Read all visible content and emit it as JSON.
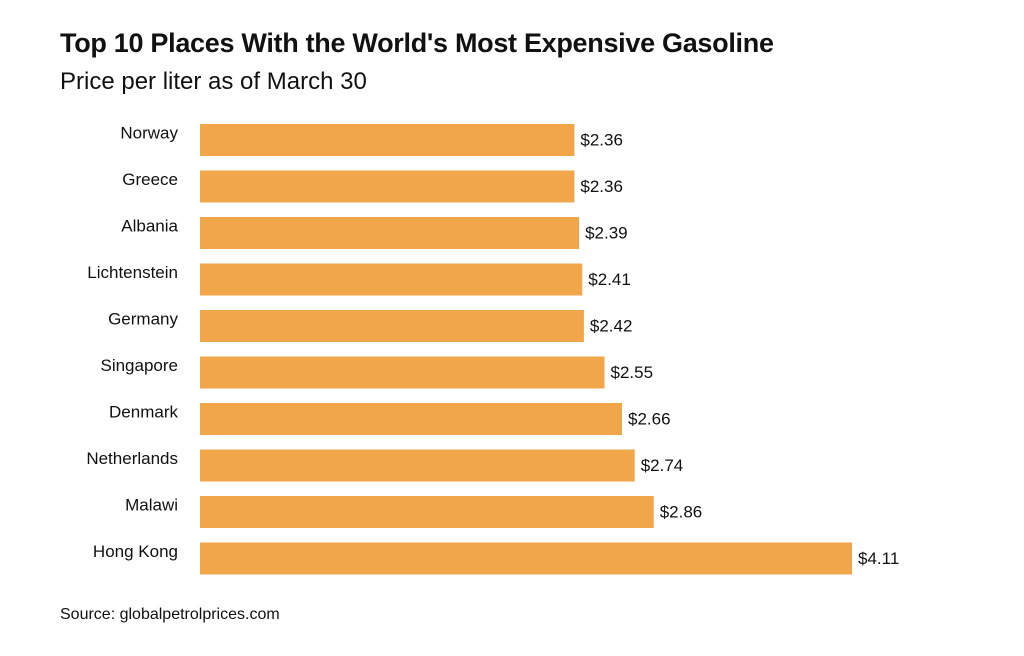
{
  "chart_data": {
    "type": "bar",
    "orientation": "horizontal",
    "title": "Top 10 Places With the World's Most Expensive Gasoline",
    "subtitle": "Price per liter as of March 30",
    "categories": [
      "Norway",
      "Greece",
      "Albania",
      "Lichtenstein",
      "Germany",
      "Singapore",
      "Denmark",
      "Netherlands",
      "Malawi",
      "Hong Kong"
    ],
    "values": [
      2.36,
      2.36,
      2.39,
      2.41,
      2.42,
      2.55,
      2.66,
      2.74,
      2.86,
      4.11
    ],
    "value_labels": [
      "$2.36",
      "$2.36",
      "$2.39",
      "$2.41",
      "$2.42",
      "$2.55",
      "$2.66",
      "$2.74",
      "$2.86",
      "$4.11"
    ],
    "xlim": [
      0,
      4.11
    ],
    "xlabel": "",
    "ylabel": "",
    "grid": false,
    "legend": "none",
    "bar_color": "#F2A64A",
    "source": "Source: globalpetrolprices.com"
  }
}
